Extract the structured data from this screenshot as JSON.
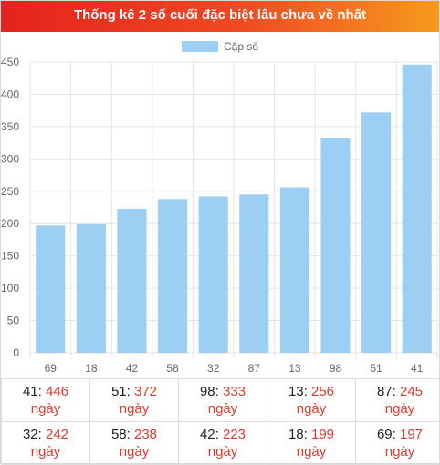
{
  "header": {
    "title": "Thống kê 2 số cuối đặc biệt lâu chưa về nhất"
  },
  "colors": {
    "bar": "#9ccff3",
    "grid": "#e4e4e4",
    "accent_red": "#e03a2f"
  },
  "chart_data": {
    "type": "bar",
    "title": "",
    "legend": {
      "position": "top-center",
      "label": "Cặp số"
    },
    "categories": [
      "69",
      "18",
      "42",
      "58",
      "32",
      "87",
      "13",
      "98",
      "51",
      "41"
    ],
    "series": [
      {
        "name": "Cặp số",
        "values": [
          197,
          199,
          223,
          238,
          242,
          245,
          256,
          333,
          372,
          446
        ]
      }
    ],
    "ylim": [
      0,
      450
    ],
    "yticks": [
      0,
      50,
      100,
      150,
      200,
      250,
      300,
      350,
      400,
      450
    ],
    "grid": true
  },
  "table": {
    "unit": "ngày",
    "separator": ":",
    "rows": [
      [
        {
          "num": "41",
          "count": "446"
        },
        {
          "num": "51",
          "count": "372"
        },
        {
          "num": "98",
          "count": "333"
        },
        {
          "num": "13",
          "count": "256"
        },
        {
          "num": "87",
          "count": "245"
        }
      ],
      [
        {
          "num": "32",
          "count": "242"
        },
        {
          "num": "58",
          "count": "238"
        },
        {
          "num": "42",
          "count": "223"
        },
        {
          "num": "18",
          "count": "199"
        },
        {
          "num": "69",
          "count": "197"
        }
      ]
    ]
  }
}
